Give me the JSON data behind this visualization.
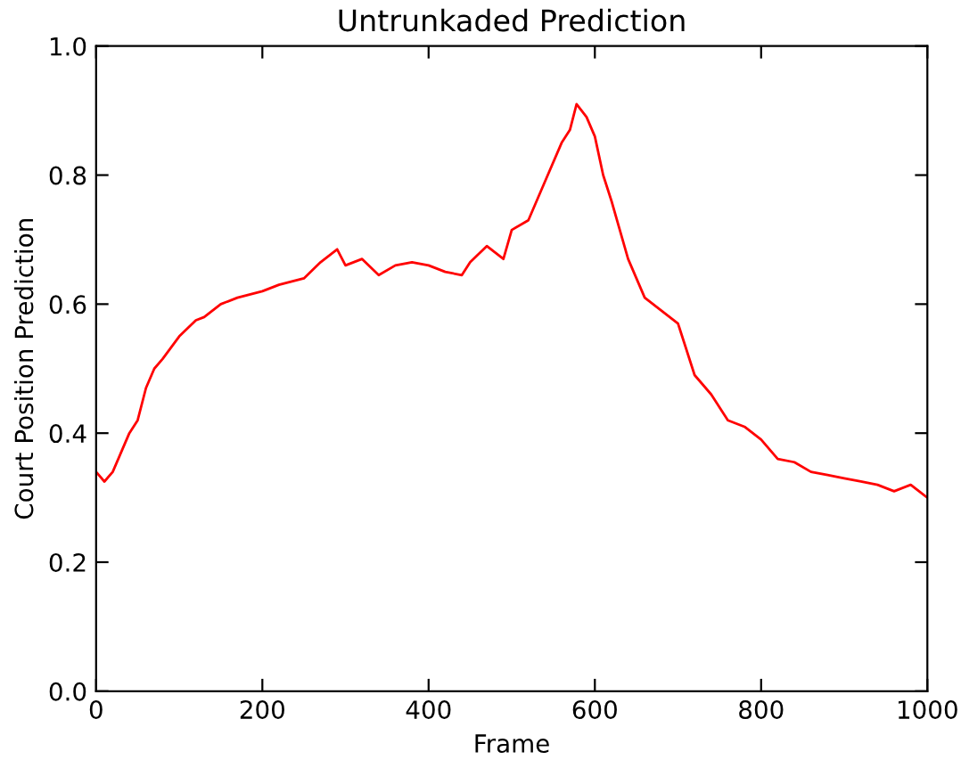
{
  "chart_data": {
    "type": "line",
    "title": "Untrunkaded Prediction",
    "xlabel": "Frame",
    "ylabel": "Court Position Prediction",
    "xlim": [
      0,
      1000
    ],
    "xticks": [
      0,
      200,
      400,
      600,
      800,
      1000
    ],
    "ylim": [
      0,
      1.0
    ],
    "yticks": [
      {
        "value": 0,
        "label": "0.0"
      },
      0.2,
      0.4,
      0.6,
      0.8,
      {
        "value": 1.0,
        "label": "1.0"
      }
    ],
    "grid": false,
    "legend": false,
    "marker": "none",
    "line_style": "solid",
    "series": [
      {
        "color": "#ff0000",
        "x": [
          0,
          10,
          20,
          30,
          40,
          50,
          60,
          70,
          80,
          100,
          120,
          130,
          150,
          170,
          200,
          220,
          250,
          270,
          290,
          300,
          320,
          340,
          360,
          380,
          400,
          420,
          440,
          450,
          470,
          490,
          500,
          520,
          540,
          560,
          570,
          578,
          590,
          600,
          610,
          620,
          640,
          660,
          680,
          700,
          710,
          720,
          740,
          760,
          780,
          800,
          820,
          840,
          860,
          880,
          900,
          920,
          940,
          960,
          980,
          990,
          1000
        ],
        "values": [
          0.34,
          0.325,
          0.34,
          0.37,
          0.4,
          0.42,
          0.47,
          0.5,
          0.515,
          0.55,
          0.575,
          0.58,
          0.6,
          0.61,
          0.62,
          0.63,
          0.64,
          0.665,
          0.685,
          0.66,
          0.67,
          0.645,
          0.66,
          0.665,
          0.66,
          0.65,
          0.645,
          0.665,
          0.69,
          0.67,
          0.715,
          0.73,
          0.79,
          0.85,
          0.87,
          0.91,
          0.89,
          0.86,
          0.8,
          0.76,
          0.67,
          0.61,
          0.59,
          0.57,
          0.53,
          0.49,
          0.46,
          0.42,
          0.41,
          0.39,
          0.36,
          0.355,
          0.34,
          0.335,
          0.33,
          0.325,
          0.32,
          0.31,
          0.32,
          0.31,
          0.3
        ]
      }
    ]
  }
}
